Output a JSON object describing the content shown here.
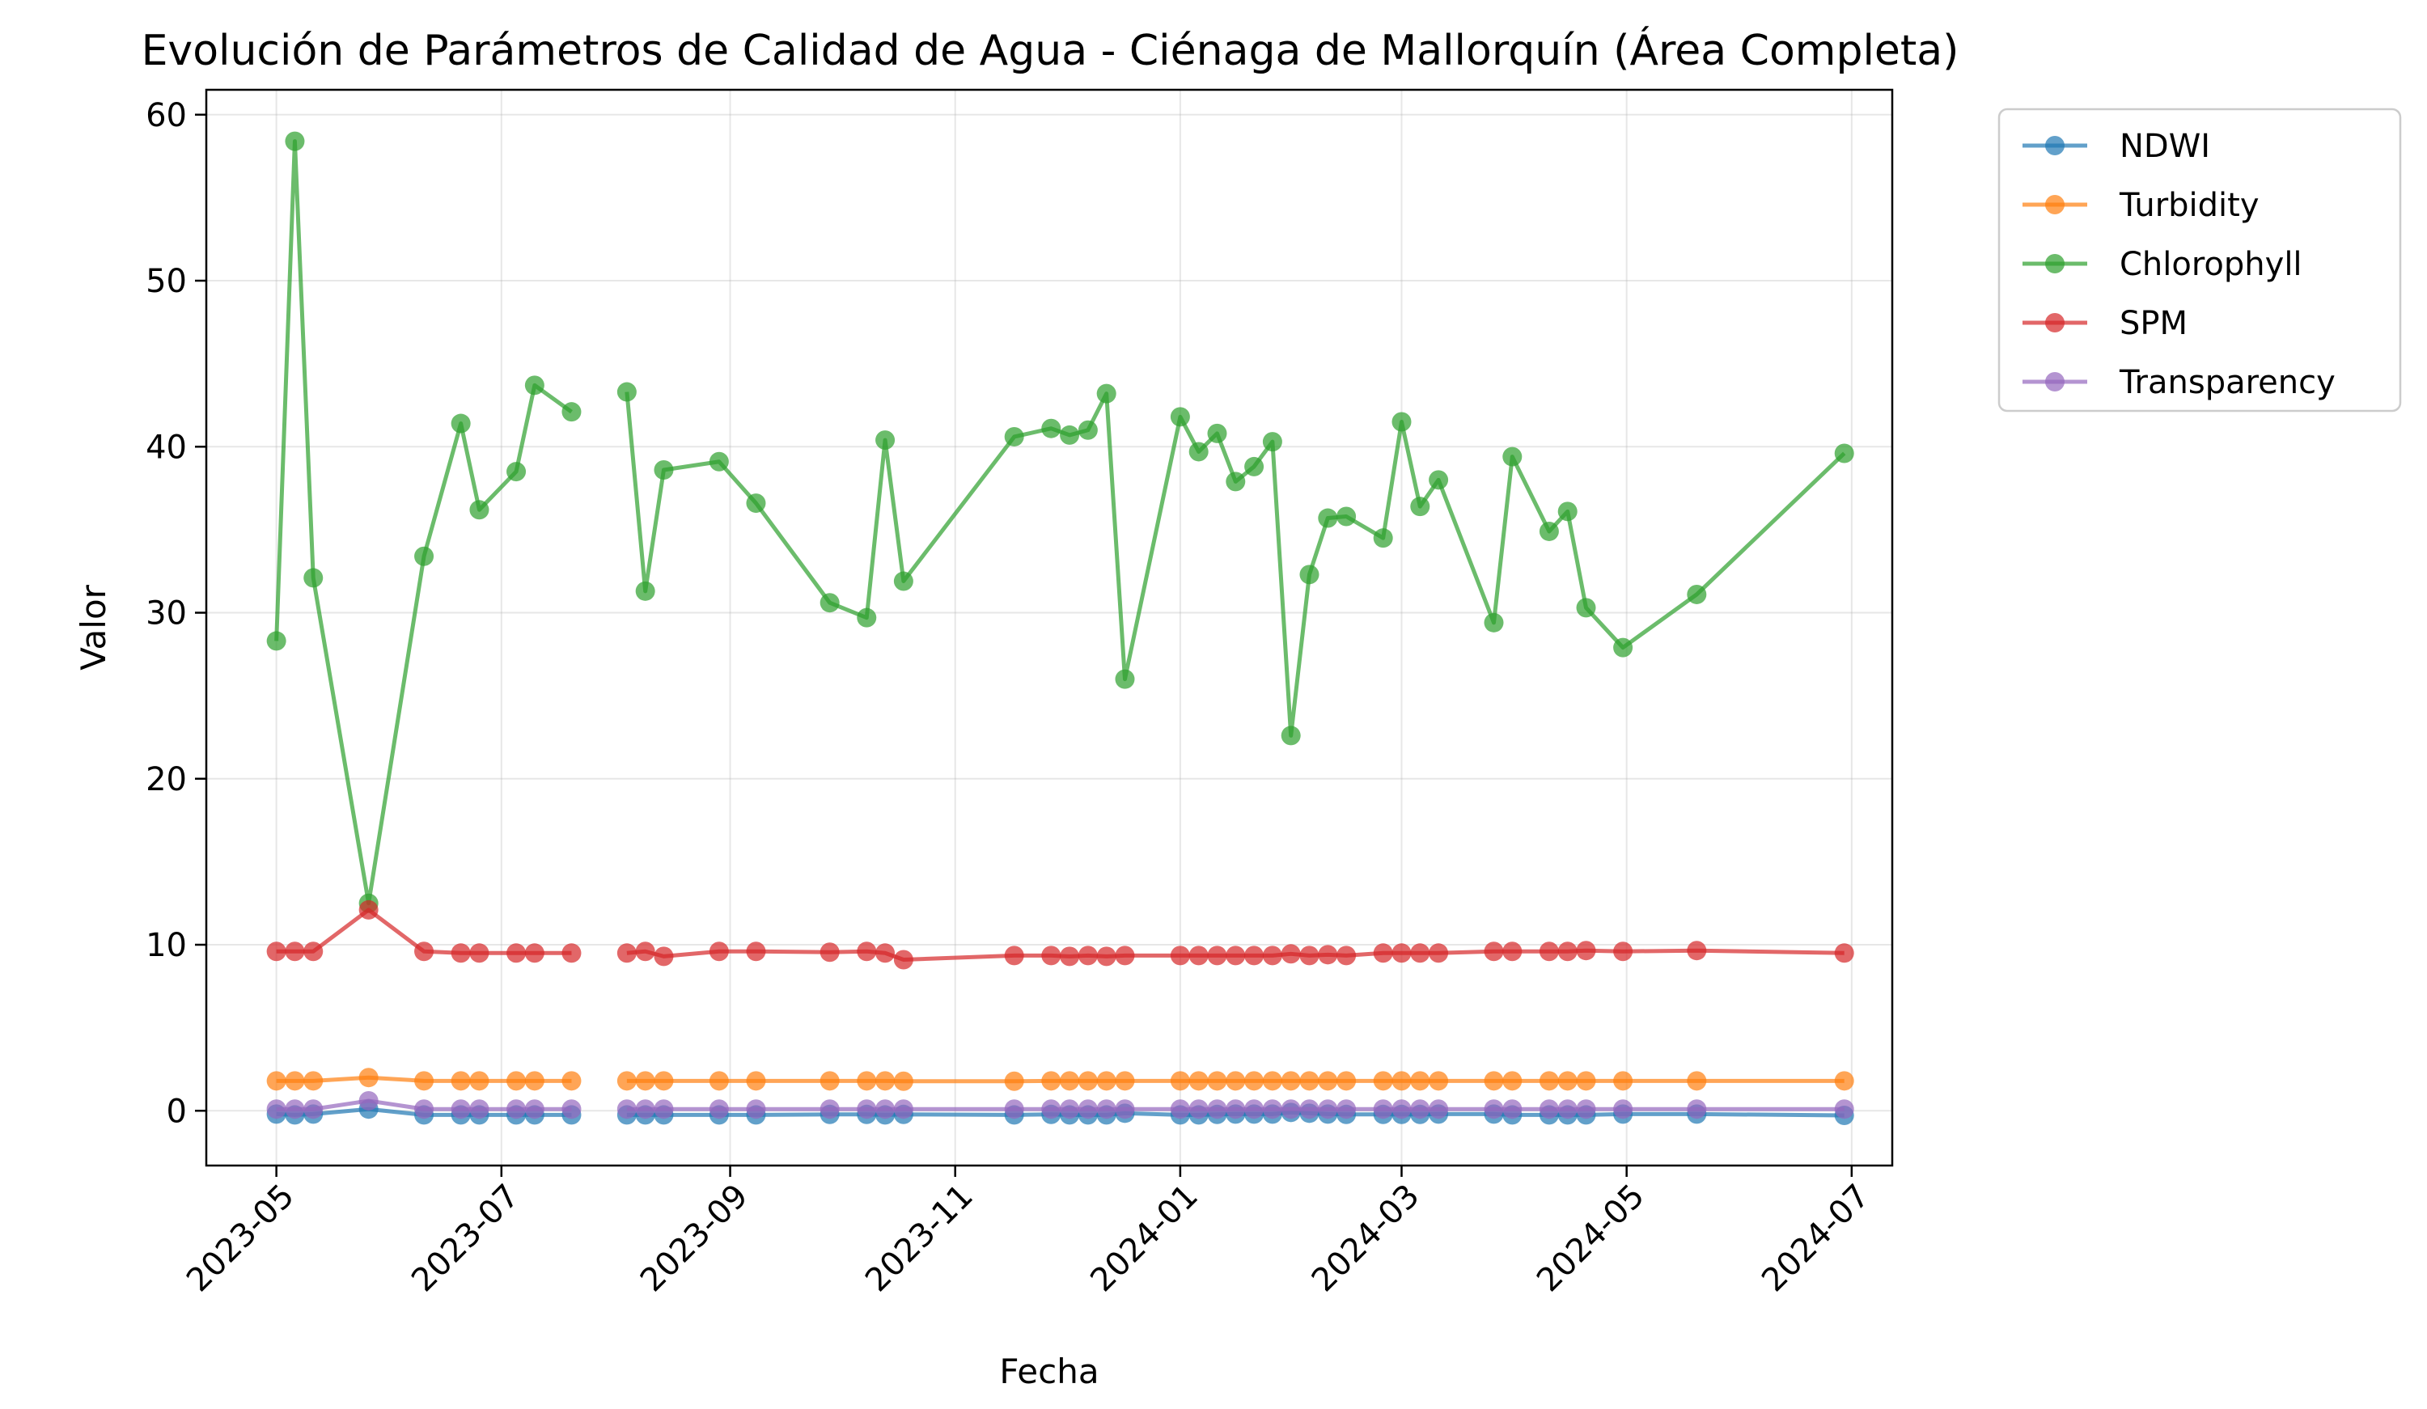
{
  "chart_data": {
    "type": "line",
    "title": "Evolución de Parámetros de Calidad de Agua - Ciénaga de Mallorquín (Área Completa)",
    "xlabel": "Fecha",
    "ylabel": "Valor",
    "xlim": [
      "2023-04-12",
      "2024-07-12"
    ],
    "ylim": [
      -3.3,
      61.5
    ],
    "x_ticks": [
      "2023-05-01",
      "2023-07-01",
      "2023-09-01",
      "2023-11-01",
      "2024-01-01",
      "2024-03-01",
      "2024-05-01",
      "2024-07-01"
    ],
    "x_tick_labels": [
      "2023-05",
      "2023-07",
      "2023-09",
      "2023-11",
      "2024-01",
      "2024-03",
      "2024-05",
      "2024-07"
    ],
    "y_ticks": [
      0,
      10,
      20,
      30,
      40,
      50,
      60
    ],
    "y_tick_labels": [
      "0",
      "10",
      "20",
      "30",
      "40",
      "50",
      "60"
    ],
    "grid": true,
    "legend_position": "outside-top-right",
    "x": [
      "2023-05-01",
      "2023-05-06",
      "2023-05-11",
      "2023-05-26",
      "2023-06-10",
      "2023-06-20",
      "2023-06-25",
      "2023-07-05",
      "2023-07-10",
      "2023-07-20",
      "2023-08-04",
      "2023-08-09",
      "2023-08-14",
      "2023-08-29",
      "2023-09-08",
      "2023-09-28",
      "2023-10-08",
      "2023-10-13",
      "2023-10-18",
      "2023-11-17",
      "2023-11-27",
      "2023-12-02",
      "2023-12-07",
      "2023-12-12",
      "2023-12-17",
      "2024-01-01",
      "2024-01-06",
      "2024-01-11",
      "2024-01-16",
      "2024-01-21",
      "2024-01-26",
      "2024-01-31",
      "2024-02-05",
      "2024-02-10",
      "2024-02-15",
      "2024-02-25",
      "2024-03-01",
      "2024-03-06",
      "2024-03-11",
      "2024-03-26",
      "2024-03-31",
      "2024-04-10",
      "2024-04-15",
      "2024-04-20",
      "2024-04-30",
      "2024-05-20",
      "2024-06-29"
    ],
    "series": [
      {
        "name": "NDWI",
        "color": "#1f77b4",
        "values": [
          -0.2,
          -0.25,
          -0.2,
          0.1,
          -0.25,
          -0.25,
          -0.25,
          -0.25,
          -0.25,
          -0.25,
          -0.25,
          -0.25,
          -0.25,
          -0.25,
          -0.25,
          -0.22,
          -0.22,
          -0.25,
          -0.22,
          -0.25,
          -0.22,
          -0.25,
          -0.25,
          -0.25,
          -0.15,
          -0.25,
          -0.25,
          -0.22,
          -0.2,
          -0.2,
          -0.2,
          -0.1,
          -0.15,
          -0.2,
          -0.22,
          -0.22,
          -0.22,
          -0.22,
          -0.2,
          -0.2,
          -0.25,
          -0.25,
          -0.25,
          -0.25,
          -0.2,
          -0.2,
          -0.28
        ]
      },
      {
        "name": "Turbidity",
        "color": "#ff7f0e",
        "values": [
          1.8,
          1.8,
          1.8,
          2.0,
          1.8,
          1.8,
          1.8,
          1.8,
          1.8,
          1.8,
          1.8,
          1.8,
          1.8,
          1.8,
          1.8,
          1.8,
          1.8,
          1.8,
          1.78,
          1.78,
          1.8,
          1.8,
          1.8,
          1.8,
          1.8,
          1.8,
          1.8,
          1.8,
          1.8,
          1.8,
          1.8,
          1.8,
          1.8,
          1.8,
          1.8,
          1.8,
          1.8,
          1.8,
          1.8,
          1.8,
          1.8,
          1.8,
          1.8,
          1.8,
          1.8,
          1.8,
          1.8
        ]
      },
      {
        "name": "Chlorophyll",
        "color": "#2ca02c",
        "values": [
          28.3,
          58.4,
          32.1,
          12.5,
          33.4,
          41.4,
          36.2,
          38.5,
          43.7,
          42.1,
          43.3,
          31.3,
          38.6,
          39.1,
          36.6,
          30.6,
          29.7,
          40.4,
          31.9,
          40.6,
          41.1,
          40.7,
          41.0,
          43.2,
          26.0,
          41.8,
          39.7,
          40.8,
          37.9,
          38.8,
          40.3,
          22.6,
          32.3,
          35.7,
          35.8,
          34.5,
          41.5,
          36.4,
          38.0,
          29.4,
          39.4,
          34.9,
          36.1,
          30.3,
          27.9,
          31.1,
          39.6
        ]
      },
      {
        "name": "SPM",
        "color": "#d62728",
        "values": [
          9.6,
          9.6,
          9.6,
          12.1,
          9.6,
          9.5,
          9.5,
          9.5,
          9.5,
          9.5,
          9.5,
          9.6,
          9.3,
          9.6,
          9.6,
          9.55,
          9.6,
          9.5,
          9.1,
          9.35,
          9.35,
          9.3,
          9.35,
          9.3,
          9.35,
          9.35,
          9.35,
          9.35,
          9.35,
          9.35,
          9.35,
          9.45,
          9.35,
          9.4,
          9.35,
          9.5,
          9.5,
          9.5,
          9.5,
          9.6,
          9.6,
          9.6,
          9.6,
          9.65,
          9.6,
          9.65,
          9.5
        ]
      },
      {
        "name": "Transparency",
        "color": "#9467bd",
        "values": [
          0.1,
          0.1,
          0.1,
          0.6,
          0.1,
          0.1,
          0.1,
          0.1,
          0.1,
          0.1,
          0.1,
          0.1,
          0.1,
          0.1,
          0.1,
          0.1,
          0.1,
          0.1,
          0.1,
          0.1,
          0.1,
          0.1,
          0.1,
          0.1,
          0.1,
          0.1,
          0.1,
          0.1,
          0.1,
          0.1,
          0.1,
          0.1,
          0.1,
          0.1,
          0.1,
          0.1,
          0.1,
          0.1,
          0.1,
          0.1,
          0.1,
          0.1,
          0.1,
          0.1,
          0.1,
          0.1,
          0.1
        ]
      }
    ]
  }
}
